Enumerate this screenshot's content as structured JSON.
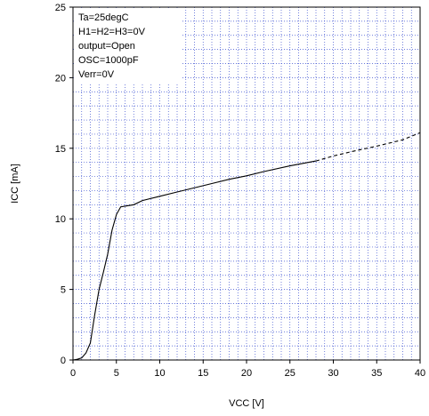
{
  "chart_data": {
    "type": "line",
    "xlabel": "VCC [V]",
    "ylabel": "ICC [mA]",
    "xlim": [
      0,
      40
    ],
    "ylim": [
      0,
      25
    ],
    "x_ticks": [
      0,
      5,
      10,
      15,
      20,
      25,
      30,
      35,
      40
    ],
    "y_ticks": [
      0,
      5,
      10,
      15,
      20,
      25
    ],
    "x_minor_step": 1,
    "y_minor_step": 1,
    "grid": true,
    "annotations": [
      "Ta=25degC",
      "H1=H2=H3=0V",
      "output=Open",
      "OSC=1000pF",
      "Verr=0V"
    ],
    "series": [
      {
        "style": "solid",
        "x": [
          0,
          0.5,
          1.0,
          1.5,
          2.0,
          2.5,
          3.0,
          3.5,
          4.0,
          4.5,
          5.0,
          5.5,
          6.0,
          7.0,
          8.0,
          10,
          12,
          15,
          18,
          20,
          22,
          25,
          28
        ],
        "y": [
          0,
          0.05,
          0.15,
          0.5,
          1.2,
          3.2,
          5.0,
          6.2,
          7.5,
          9.2,
          10.3,
          10.85,
          10.9,
          11.0,
          11.3,
          11.6,
          11.9,
          12.35,
          12.8,
          13.05,
          13.35,
          13.75,
          14.1
        ]
      },
      {
        "style": "dashed",
        "x": [
          28,
          30,
          32,
          35,
          38,
          40
        ],
        "y": [
          14.1,
          14.45,
          14.75,
          15.15,
          15.6,
          16.1
        ]
      }
    ]
  }
}
